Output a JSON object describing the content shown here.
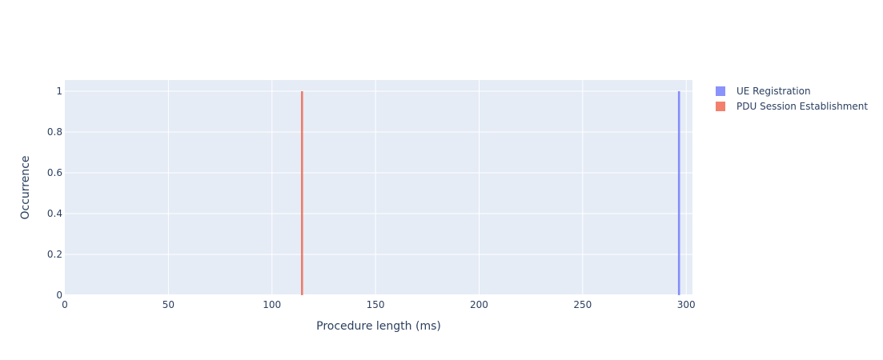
{
  "chart_data": {
    "type": "bar",
    "title": "",
    "xlabel": "Procedure length (ms)",
    "ylabel": "Occurrence",
    "xlim": [
      0,
      303
    ],
    "ylim": [
      0,
      1.055
    ],
    "x_ticks": [
      0,
      50,
      100,
      150,
      200,
      250,
      300
    ],
    "y_ticks": [
      0,
      0.2,
      0.4,
      0.6,
      0.8,
      1
    ],
    "x_tick_labels": [
      "0",
      "50",
      "100",
      "150",
      "200",
      "250",
      "300"
    ],
    "y_tick_labels": [
      "0",
      "0.2",
      "0.4",
      "0.6",
      "0.8",
      "1"
    ],
    "bin_width": 1,
    "grid": true,
    "legend_position": "top-right",
    "plot_background": "#e5ecf6",
    "series": [
      {
        "name": "UE Registration",
        "color": "#636efa",
        "opacity": 0.75,
        "bins": [
          {
            "x": 296,
            "y": 1
          }
        ]
      },
      {
        "name": "PDU Session Establishment",
        "color": "#ef553b",
        "opacity": 0.75,
        "bins": [
          {
            "x": 114,
            "y": 1
          }
        ]
      }
    ]
  }
}
